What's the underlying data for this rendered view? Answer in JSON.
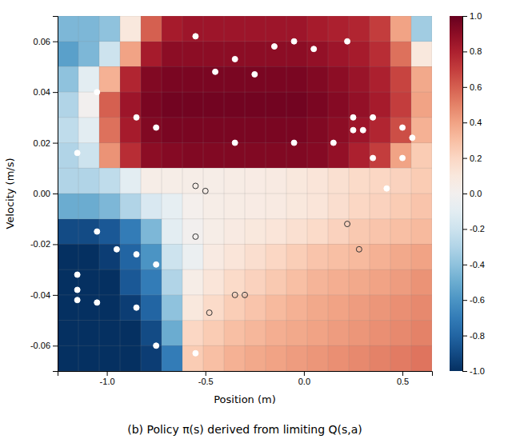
{
  "chart_data": {
    "type": "heatmap",
    "title": "(b) Policy π(s) derived from limiting Q(s,a)",
    "xlabel": "Position (m)",
    "ylabel": "Velocity (m/s)",
    "xlim": [
      -1.25,
      0.65
    ],
    "ylim": [
      -0.07,
      0.07
    ],
    "xticks": [
      {
        "value": -1.0,
        "label": "-1.0"
      },
      -0.5,
      {
        "value": 0.0,
        "label": "0.0"
      },
      0.5
    ],
    "yticks": [
      -0.06,
      -0.04,
      -0.02,
      {
        "value": 0.0,
        "label": "0.00"
      },
      0.02,
      0.04,
      0.06
    ],
    "grid": true,
    "x_edges": [
      -1.25,
      -1.1444444444444444,
      -1.0388888888888888,
      -0.9333333333333333,
      -0.8277777777777777,
      -0.7222222222222222,
      -0.6166666666666667,
      -0.5111111111111111,
      -0.40555555555555556,
      -0.3,
      -0.19444444444444442,
      -0.0888888888888889,
      0.016666666666666607,
      0.12222222222222223,
      0.2277777777777778,
      0.3333333333333333,
      0.4388888888888889,
      0.5444444444444445,
      0.65
    ],
    "y_edges": [
      -0.07,
      -0.06,
      -0.05,
      -0.04,
      -0.03,
      -0.02,
      -0.01,
      0.0,
      0.01,
      0.02,
      0.03,
      0.04,
      0.05,
      0.06,
      0.07
    ],
    "cells": [
      [
        -1.0,
        -1.0,
        -1.0,
        -1.0,
        -0.95,
        -0.7,
        0.25,
        0.3,
        0.35,
        0.38,
        0.4,
        0.42,
        0.44,
        0.46,
        0.48,
        0.5,
        0.52,
        0.54
      ],
      [
        -1.0,
        -1.0,
        -1.0,
        -1.0,
        -0.9,
        -0.5,
        0.2,
        0.25,
        0.3,
        0.33,
        0.36,
        0.38,
        0.4,
        0.42,
        0.44,
        0.46,
        0.48,
        0.5
      ],
      [
        -1.0,
        -1.0,
        -1.0,
        -0.95,
        -0.8,
        -0.4,
        0.1,
        0.18,
        0.24,
        0.28,
        0.32,
        0.35,
        0.38,
        0.4,
        0.42,
        0.44,
        0.46,
        0.48
      ],
      [
        -1.0,
        -1.0,
        -1.0,
        -0.85,
        -0.7,
        -0.3,
        0.05,
        0.12,
        0.18,
        0.22,
        0.26,
        0.3,
        0.34,
        0.36,
        0.38,
        0.4,
        0.42,
        0.45
      ],
      [
        -1.0,
        -1.0,
        -0.95,
        -0.8,
        -0.6,
        -0.2,
        -0.05,
        0.08,
        0.12,
        0.16,
        0.2,
        0.24,
        0.28,
        0.3,
        0.32,
        0.35,
        0.38,
        0.4
      ],
      [
        -0.9,
        -0.9,
        -0.85,
        -0.7,
        -0.45,
        -0.1,
        0.0,
        0.05,
        0.08,
        0.1,
        0.12,
        0.15,
        0.18,
        0.22,
        0.26,
        0.28,
        0.3,
        0.32
      ],
      [
        -0.5,
        -0.5,
        -0.45,
        -0.3,
        -0.15,
        -0.08,
        0.02,
        0.05,
        0.06,
        0.07,
        0.08,
        0.1,
        0.12,
        0.16,
        0.2,
        0.22,
        0.25,
        0.28
      ],
      [
        -0.3,
        -0.3,
        -0.25,
        -0.1,
        0.05,
        0.05,
        0.05,
        0.05,
        0.06,
        0.07,
        0.08,
        0.1,
        0.12,
        0.15,
        0.18,
        0.2,
        0.22,
        0.25
      ],
      [
        -0.3,
        -0.2,
        0.45,
        0.75,
        0.9,
        0.92,
        0.93,
        0.93,
        0.93,
        0.93,
        0.93,
        0.93,
        0.92,
        0.88,
        0.8,
        0.7,
        0.4,
        0.25
      ],
      [
        -0.25,
        -0.1,
        0.55,
        0.82,
        0.93,
        0.95,
        0.95,
        0.95,
        0.95,
        0.95,
        0.95,
        0.95,
        0.93,
        0.9,
        0.85,
        0.78,
        0.65,
        0.35
      ],
      [
        -0.3,
        0.0,
        0.6,
        0.85,
        0.95,
        0.97,
        0.97,
        0.97,
        0.97,
        0.97,
        0.97,
        0.97,
        0.95,
        0.92,
        0.88,
        0.82,
        0.7,
        0.4
      ],
      [
        -0.4,
        -0.1,
        0.35,
        0.78,
        0.93,
        0.95,
        0.95,
        0.95,
        0.95,
        0.95,
        0.95,
        0.95,
        0.93,
        0.9,
        0.86,
        0.8,
        0.68,
        0.38
      ],
      [
        -0.55,
        -0.45,
        -0.2,
        0.4,
        0.82,
        0.9,
        0.9,
        0.9,
        0.9,
        0.9,
        0.9,
        0.9,
        0.88,
        0.85,
        0.82,
        0.75,
        0.55,
        0.1
      ],
      [
        -0.45,
        -0.45,
        -0.4,
        0.1,
        0.6,
        0.82,
        0.85,
        0.85,
        0.85,
        0.85,
        0.85,
        0.85,
        0.82,
        0.8,
        0.78,
        0.7,
        0.4,
        -0.35
      ]
    ],
    "zlim": [
      -1.0,
      1.0
    ],
    "zticks": [
      {
        "value": -1.0,
        "label": "-1.0"
      },
      -0.8,
      -0.6,
      -0.4,
      -0.2,
      {
        "value": 0.0,
        "label": "0.0"
      },
      0.2,
      0.4,
      0.6,
      0.8,
      {
        "value": 1.0,
        "label": "1.0"
      }
    ],
    "series": [
      {
        "type": "scatter",
        "marker": "circle",
        "color": "#ffffff",
        "x": [
          -0.55,
          -0.05,
          0.22,
          -0.35,
          -0.15,
          0.05,
          -0.45,
          -0.25,
          -1.05,
          -0.85,
          -0.75,
          -0.35,
          -0.05,
          0.15,
          0.25,
          0.3,
          0.25,
          0.35,
          0.5,
          0.55,
          0.5,
          0.35,
          -1.15,
          -1.05,
          -0.95,
          -0.85,
          -0.75,
          -1.15,
          -1.15,
          -1.15,
          -1.05,
          -0.85,
          -0.75,
          -0.55,
          0.42
        ],
        "y": [
          0.062,
          0.06,
          0.06,
          0.053,
          0.058,
          0.057,
          0.048,
          0.047,
          0.04,
          0.03,
          0.026,
          0.02,
          0.02,
          0.02,
          0.025,
          0.025,
          0.03,
          0.03,
          0.026,
          0.022,
          0.014,
          0.014,
          0.016,
          -0.015,
          -0.022,
          -0.024,
          -0.028,
          -0.032,
          -0.038,
          -0.042,
          -0.043,
          -0.045,
          -0.06,
          -0.063,
          0.002
        ]
      },
      {
        "type": "scatter",
        "marker": "circle-open",
        "color": "#333333",
        "x": [
          -0.55,
          -0.5,
          -0.55,
          -0.35,
          -0.3,
          0.22,
          0.28,
          -0.48
        ],
        "y": [
          0.003,
          0.001,
          -0.017,
          -0.04,
          -0.04,
          -0.012,
          -0.022,
          -0.047
        ]
      }
    ]
  }
}
